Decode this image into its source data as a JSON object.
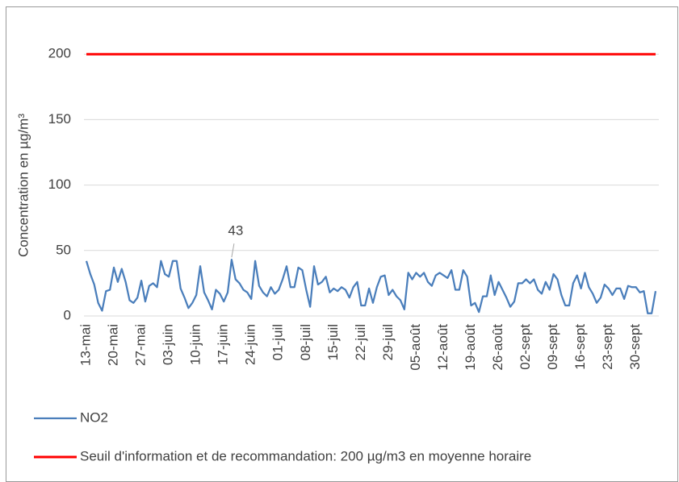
{
  "chart_data": {
    "type": "line",
    "y_axis_label": "Concentration en µg/m³",
    "categories": [
      "13-mai",
      null,
      null,
      null,
      null,
      null,
      null,
      "20-mai",
      null,
      null,
      null,
      null,
      null,
      null,
      "27-mai",
      null,
      null,
      null,
      null,
      null,
      null,
      "03-juin",
      null,
      null,
      null,
      null,
      null,
      null,
      "10-juin",
      null,
      null,
      null,
      null,
      null,
      null,
      "17-juin",
      null,
      null,
      null,
      null,
      null,
      null,
      "24-juin",
      null,
      null,
      null,
      null,
      null,
      null,
      "01-juil",
      null,
      null,
      null,
      null,
      null,
      null,
      "08-juil",
      null,
      null,
      null,
      null,
      null,
      null,
      "15-juil",
      null,
      null,
      null,
      null,
      null,
      null,
      "22-juil",
      null,
      null,
      null,
      null,
      null,
      null,
      "29-juil",
      null,
      null,
      null,
      null,
      null,
      null,
      "05-août",
      null,
      null,
      null,
      null,
      null,
      null,
      "12-août",
      null,
      null,
      null,
      null,
      null,
      null,
      "19-août",
      null,
      null,
      null,
      null,
      null,
      null,
      "26-août",
      null,
      null,
      null,
      null,
      null,
      null,
      "02-sept",
      null,
      null,
      null,
      null,
      null,
      null,
      "09-sept",
      null,
      null,
      null,
      null,
      null,
      null,
      "16-sept",
      null,
      null,
      null,
      null,
      null,
      null,
      "23-sept",
      null,
      null,
      null,
      null,
      null,
      null,
      "30-sept",
      null,
      null,
      null,
      null,
      null
    ],
    "series": [
      {
        "name": "Seuil d'information et de recommandation: 200 µg/m3 en moyenne horaire",
        "color": "#ff0000",
        "values": [
          200,
          200,
          200,
          200,
          200,
          200,
          200,
          200,
          200,
          200,
          200,
          200,
          200,
          200,
          200,
          200,
          200,
          200,
          200,
          200,
          200,
          200,
          200,
          200,
          200,
          200,
          200,
          200,
          200,
          200,
          200,
          200,
          200,
          200,
          200,
          200,
          200,
          200,
          200,
          200,
          200,
          200,
          200,
          200,
          200,
          200,
          200,
          200,
          200,
          200,
          200,
          200,
          200,
          200,
          200,
          200,
          200,
          200,
          200,
          200,
          200,
          200,
          200,
          200,
          200,
          200,
          200,
          200,
          200,
          200,
          200,
          200,
          200,
          200,
          200,
          200,
          200,
          200,
          200,
          200,
          200,
          200,
          200,
          200,
          200,
          200,
          200,
          200,
          200,
          200,
          200,
          200,
          200,
          200,
          200,
          200,
          200,
          200,
          200,
          200,
          200,
          200,
          200,
          200,
          200,
          200,
          200,
          200,
          200,
          200,
          200,
          200,
          200,
          200,
          200,
          200,
          200,
          200,
          200,
          200,
          200,
          200,
          200,
          200,
          200,
          200,
          200,
          200,
          200,
          200,
          200,
          200,
          200,
          200,
          200,
          200,
          200,
          200,
          200,
          200,
          200,
          200,
          200,
          200,
          200,
          200
        ]
      },
      {
        "name": "NO2",
        "color": "#4a7ebb",
        "values": [
          42,
          32,
          24,
          10,
          4,
          19,
          20,
          37,
          26,
          36,
          26,
          12,
          10,
          14,
          27,
          11,
          23,
          25,
          22,
          42,
          32,
          30,
          42,
          42,
          21,
          14,
          6,
          10,
          16,
          38,
          18,
          12,
          5,
          20,
          17,
          11,
          18,
          43,
          28,
          25,
          20,
          18,
          13,
          42,
          23,
          18,
          15,
          22,
          17,
          20,
          28,
          38,
          22,
          22,
          37,
          35,
          20,
          7,
          38,
          24,
          26,
          30,
          18,
          21,
          19,
          22,
          20,
          14,
          22,
          26,
          8,
          8,
          21,
          10,
          22,
          30,
          31,
          16,
          20,
          15,
          12,
          5,
          33,
          28,
          33,
          30,
          33,
          26,
          23,
          31,
          33,
          31,
          29,
          35,
          20,
          20,
          35,
          30,
          8,
          10,
          3,
          15,
          15,
          31,
          16,
          26,
          20,
          14,
          7,
          11,
          25,
          25,
          28,
          25,
          28,
          20,
          17,
          26,
          20,
          32,
          28,
          16,
          8,
          8,
          25,
          31,
          21,
          33,
          22,
          17,
          10,
          14,
          24,
          21,
          16,
          21,
          21,
          13,
          23,
          22,
          22,
          18,
          19,
          2,
          2,
          19
        ]
      }
    ],
    "ylim": [
      0,
      210
    ],
    "yticks": [
      0,
      50,
      100,
      150,
      200
    ],
    "grid": true
  }
}
